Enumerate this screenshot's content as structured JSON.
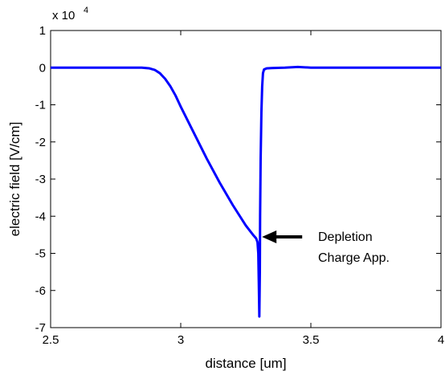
{
  "chart_data": {
    "type": "line",
    "title": "",
    "xlabel": "distance [um]",
    "ylabel": "electric field [V/cm]",
    "exponent_label": {
      "base": "x 10",
      "power": "4"
    },
    "xlim": [
      2.5,
      4
    ],
    "ylim": [
      -7,
      1
    ],
    "xticks": [
      2.5,
      3,
      3.5,
      4
    ],
    "xtick_labels": [
      "2.5",
      "3",
      "3.5",
      "4"
    ],
    "yticks": [
      1,
      0,
      -1,
      -2,
      -3,
      -4,
      -5,
      -6,
      -7
    ],
    "ytick_labels": [
      "1",
      "0",
      "-1",
      "-2",
      "-3",
      "-4",
      "-5",
      "-6",
      "-7"
    ],
    "grid": false,
    "line_color": "#0000ff",
    "series": [
      {
        "x": [
          2.5,
          2.85,
          2.88,
          2.9,
          2.92,
          2.94,
          2.96,
          2.98,
          3.0,
          3.05,
          3.1,
          3.15,
          3.2,
          3.25,
          3.28,
          3.29,
          3.295,
          3.298,
          3.3,
          3.302,
          3.304,
          3.305,
          3.307,
          3.31,
          3.313,
          3.316,
          3.32,
          3.33,
          3.35,
          3.4,
          3.45,
          3.5,
          4.0
        ],
        "y": [
          0,
          0,
          -0.02,
          -0.06,
          -0.15,
          -0.3,
          -0.5,
          -0.75,
          -1.05,
          -1.75,
          -2.45,
          -3.1,
          -3.7,
          -4.25,
          -4.52,
          -4.6,
          -4.7,
          -5.0,
          -5.8,
          -6.7,
          -5.5,
          -4.0,
          -2.5,
          -1.2,
          -0.5,
          -0.15,
          -0.05,
          -0.02,
          -0.01,
          0.0,
          0.02,
          0.0,
          0.0
        ]
      }
    ],
    "annotation": {
      "lines": [
        "Depletion",
        "Charge App."
      ],
      "arrow_target": {
        "x": 3.3,
        "y": -4.6
      }
    }
  }
}
